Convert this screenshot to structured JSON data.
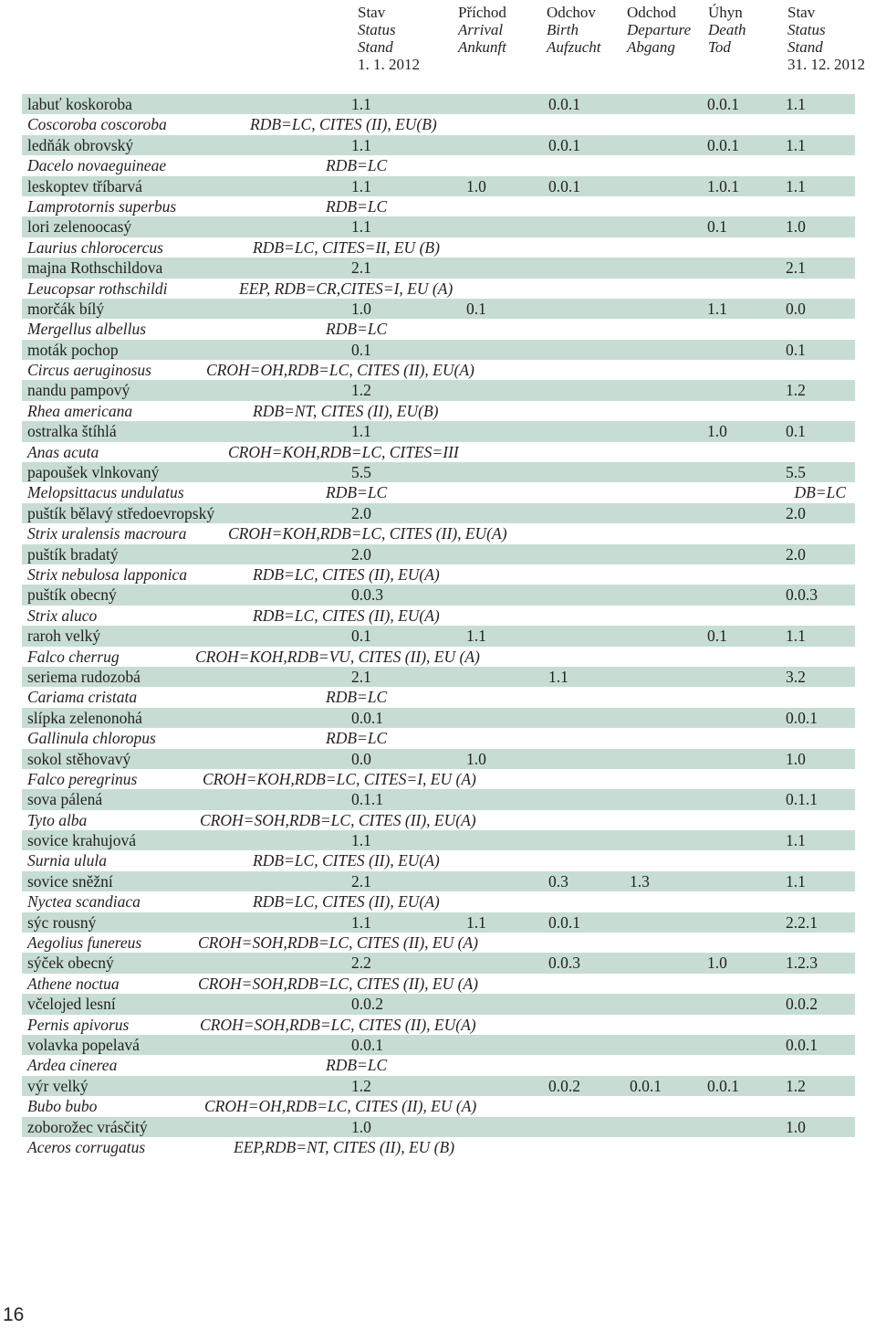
{
  "header": [
    {
      "l1": "Stav",
      "l2": "Status",
      "l3": "Stand",
      "l4": "1. 1. 2012"
    },
    {
      "l1": "Příchod",
      "l2": "Arrival",
      "l3": "Ankunft",
      "l4": ""
    },
    {
      "l1": "Odchov",
      "l2": "Birth",
      "l3": "Aufzucht",
      "l4": ""
    },
    {
      "l1": "Odchod",
      "l2": "Departure",
      "l3": "Abgang",
      "l4": ""
    },
    {
      "l1": "Úhyn",
      "l2": "Death",
      "l3": "Tod",
      "l4": ""
    },
    {
      "l1": "Stav",
      "l2": "Status",
      "l3": "Stand",
      "l4": "31. 12. 2012"
    }
  ],
  "species": [
    {
      "common": "labuť koskoroba",
      "start": "1.1",
      "arrival": "",
      "birth": "0.0.1",
      "departure": "",
      "death": "0.0.1",
      "end": "1.1",
      "latin": "Coscoroba coscoroba",
      "status": "RDB=LC, CITES (II), EU(B)",
      "statusX": 250,
      "note": ""
    },
    {
      "common": "ledňák obrovský",
      "start": "1.1",
      "arrival": "",
      "birth": "0.0.1",
      "departure": "",
      "death": "0.0.1",
      "end": "1.1",
      "latin": "Dacelo novaeguineae",
      "status": "RDB=LC",
      "statusX": 333,
      "note": ""
    },
    {
      "common": "leskoptev tříbarvá",
      "start": "1.1",
      "arrival": "1.0",
      "birth": "0.0.1",
      "departure": "",
      "death": "1.0.1",
      "end": "1.1",
      "latin": "Lamprotornis superbus",
      "status": "RDB=LC",
      "statusX": 333,
      "note": ""
    },
    {
      "common": "lori zelenoocasý",
      "start": "1.1",
      "arrival": "",
      "birth": "",
      "departure": "",
      "death": "0.1",
      "end": "1.0",
      "latin": "Laurius chlorocercus",
      "status": "RDB=LC, CITES=II, EU (B)",
      "statusX": 253,
      "note": ""
    },
    {
      "common": "majna Rothschildova",
      "start": "2.1",
      "arrival": "",
      "birth": "",
      "departure": "",
      "death": "",
      "end": "2.1",
      "latin": "Leucopsar rothschildi",
      "status": "EEP, RDB=CR,CITES=I, EU (A)",
      "statusX": 238,
      "note": ""
    },
    {
      "common": "morčák bílý",
      "start": "1.0",
      "arrival": "0.1",
      "birth": "",
      "departure": "",
      "death": "1.1",
      "end": "0.0",
      "latin": "Mergellus albellus",
      "status": "RDB=LC",
      "statusX": 333,
      "note": ""
    },
    {
      "common": "moták pochop",
      "start": "0.1",
      "arrival": "",
      "birth": "",
      "departure": "",
      "death": "",
      "end": "0.1",
      "latin": "Circus aeruginosus",
      "status": "CROH=OH,RDB=LC, CITES (II), EU(A)",
      "statusX": 202,
      "note": ""
    },
    {
      "common": "nandu pampový",
      "start": "1.2",
      "arrival": "",
      "birth": "",
      "departure": "",
      "death": "",
      "end": "1.2",
      "latin": "Rhea americana",
      "status": "RDB=NT, CITES (II), EU(B)",
      "statusX": 253,
      "note": ""
    },
    {
      "common": "ostralka štíhlá",
      "start": "1.1",
      "arrival": "",
      "birth": "",
      "departure": "",
      "death": "1.0",
      "end": "0.1",
      "latin": "Anas acuta",
      "status": "CROH=KOH,RDB=LC, CITES=III",
      "statusX": 226,
      "note": ""
    },
    {
      "common": "papoušek vlnkovaný",
      "start": "5.5",
      "arrival": "",
      "birth": "",
      "departure": "",
      "death": "",
      "end": "5.5",
      "latin": "Melopsittacus undulatus",
      "status": "RDB=LC",
      "statusX": 333,
      "note": "DB=LC"
    },
    {
      "common": "puštík bělavý středoevropský",
      "start": "2.0",
      "arrival": "",
      "birth": "",
      "departure": "",
      "death": "",
      "end": "2.0",
      "latin": "Strix uralensis macroura",
      "status": "CROH=KOH,RDB=LC, CITES (II), EU(A)",
      "statusX": 226,
      "note": ""
    },
    {
      "common": "puštík bradatý",
      "start": "2.0",
      "arrival": "",
      "birth": "",
      "departure": "",
      "death": "",
      "end": "2.0",
      "latin": "Strix nebulosa lapponica",
      "status": "RDB=LC, CITES (II), EU(A)",
      "statusX": 253,
      "note": ""
    },
    {
      "common": "puštík obecný",
      "start": "0.0.3",
      "arrival": "",
      "birth": "",
      "departure": "",
      "death": "",
      "end": "0.0.3",
      "latin": "Strix aluco",
      "status": "RDB=LC, CITES (II), EU(A)",
      "statusX": 253,
      "note": ""
    },
    {
      "common": "raroh velký",
      "start": "0.1",
      "arrival": "1.1",
      "birth": "",
      "departure": "",
      "death": "0.1",
      "end": "1.1",
      "latin": "Falco cherrug",
      "status": "CROH=KOH,RDB=VU, CITES (II), EU (A)",
      "statusX": 190,
      "note": ""
    },
    {
      "common": "seriema rudozobá",
      "start": "2.1",
      "arrival": "",
      "birth": "1.1",
      "departure": "",
      "death": "",
      "end": "3.2",
      "latin": "Cariama cristata",
      "status": "RDB=LC",
      "statusX": 333,
      "note": ""
    },
    {
      "common": "slípka zelenonohá",
      "start": "0.0.1",
      "arrival": "",
      "birth": "",
      "departure": "",
      "death": "",
      "end": "0.0.1",
      "latin": "Gallinula chloropus",
      "status": "RDB=LC",
      "statusX": 333,
      "note": ""
    },
    {
      "common": "sokol stěhovavý",
      "start": "0.0",
      "arrival": "1.0",
      "birth": "",
      "departure": "",
      "death": "",
      "end": "1.0",
      "latin": "Falco peregrinus",
      "status": "CROH=KOH,RDB=LC, CITES=I, EU (A)",
      "statusX": 198,
      "note": ""
    },
    {
      "common": "sova pálená",
      "start": "0.1.1",
      "arrival": "",
      "birth": "",
      "departure": "",
      "death": "",
      "end": "0.1.1",
      "latin": "Tyto alba",
      "status": "CROH=SOH,RDB=LC, CITES (II), EU(A)",
      "statusX": 195,
      "note": ""
    },
    {
      "common": "sovice krahujová",
      "start": "1.1",
      "arrival": "",
      "birth": "",
      "departure": "",
      "death": "",
      "end": "1.1",
      "latin": "Surnia ulula",
      "status": "RDB=LC, CITES (II), EU(A)",
      "statusX": 253,
      "note": ""
    },
    {
      "common": "sovice sněžní",
      "start": "2.1",
      "arrival": "",
      "birth": "0.3",
      "departure": "1.3",
      "death": "",
      "end": "1.1",
      "latin": "Nyctea scandiaca",
      "status": "RDB=LC, CITES (II), EU(A)",
      "statusX": 253,
      "note": ""
    },
    {
      "common": "sýc rousný",
      "start": "1.1",
      "arrival": "1.1",
      "birth": "0.0.1",
      "departure": "",
      "death": "",
      "end": "2.2.1",
      "latin": "Aegolius funereus",
      "status": "CROH=SOH,RDB=LC, CITES (II), EU (A)",
      "statusX": 193,
      "note": ""
    },
    {
      "common": "sýček obecný",
      "start": "2.2",
      "arrival": "",
      "birth": "0.0.3",
      "departure": "",
      "death": "1.0",
      "end": "1.2.3",
      "latin": "Athene noctua",
      "status": "CROH=SOH,RDB=LC, CITES (II), EU (A)",
      "statusX": 193,
      "note": ""
    },
    {
      "common": "včelojed lesní",
      "start": "0.0.2",
      "arrival": "",
      "birth": "",
      "departure": "",
      "death": "",
      "end": "0.0.2",
      "latin": "Pernis apivorus",
      "status": "CROH=SOH,RDB=LC, CITES (II), EU(A)",
      "statusX": 195,
      "note": ""
    },
    {
      "common": "volavka popelavá",
      "start": "0.0.1",
      "arrival": "",
      "birth": "",
      "departure": "",
      "death": "",
      "end": "0.0.1",
      "latin": "Ardea cinerea",
      "status": "RDB=LC",
      "statusX": 333,
      "note": ""
    },
    {
      "common": "výr velký",
      "start": "1.2",
      "arrival": "",
      "birth": "0.0.2",
      "departure": "0.0.1",
      "death": "0.0.1",
      "end": "1.2",
      "latin": "Bubo bubo",
      "status": "CROH=OH,RDB=LC, CITES (II), EU (A)",
      "statusX": 200,
      "note": ""
    },
    {
      "common": "zoborožec vrásčitý",
      "start": "1.0",
      "arrival": "",
      "birth": "",
      "departure": "",
      "death": "",
      "end": "1.0",
      "latin": "Aceros corrugatus",
      "status": "EEP,RDB=NT, CITES (II), EU (B)",
      "statusX": 232,
      "note": ""
    }
  ],
  "page_number": "16"
}
